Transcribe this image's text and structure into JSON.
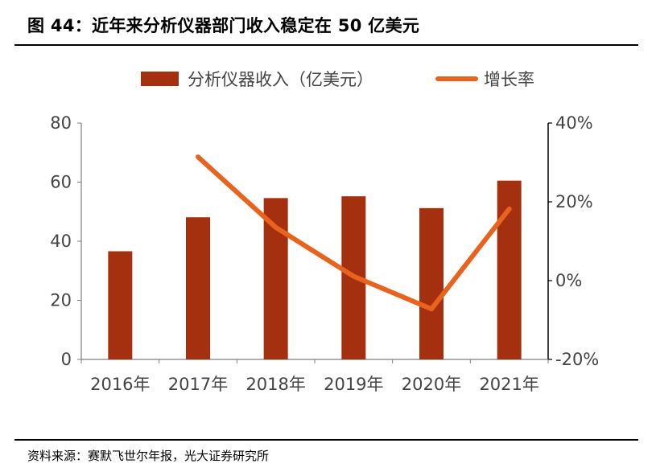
{
  "figure": {
    "title": "图 44：近年来分析仪器部门收入稳定在 50 亿美元",
    "source": "资料来源：赛默飞世尔年报，光大证券研究所"
  },
  "colors": {
    "bar": "#A5300F",
    "line": "#E8641E",
    "axis": "#7f7f7f",
    "text": "#444444"
  },
  "chart_data": {
    "type": "bar",
    "categories": [
      "2016年",
      "2017年",
      "2018年",
      "2019年",
      "2020年",
      "2021年"
    ],
    "series": [
      {
        "name": "分析仪器收入（亿美元）",
        "type": "bar",
        "axis": "left",
        "values": [
          36.6,
          48.1,
          54.6,
          55.2,
          51.2,
          60.5
        ]
      },
      {
        "name": "增长率",
        "type": "line",
        "axis": "right",
        "values": [
          null,
          31.4,
          13.5,
          1.1,
          -7.2,
          18.2
        ]
      }
    ],
    "y_left": {
      "ticks": [
        "0",
        "20",
        "40",
        "60",
        "80"
      ],
      "lim": [
        0,
        80
      ]
    },
    "y_right": {
      "ticks": [
        "-20%",
        "0%",
        "20%",
        "40%"
      ],
      "lim": [
        -20,
        40
      ]
    },
    "legend_position": "top",
    "grid": false
  }
}
